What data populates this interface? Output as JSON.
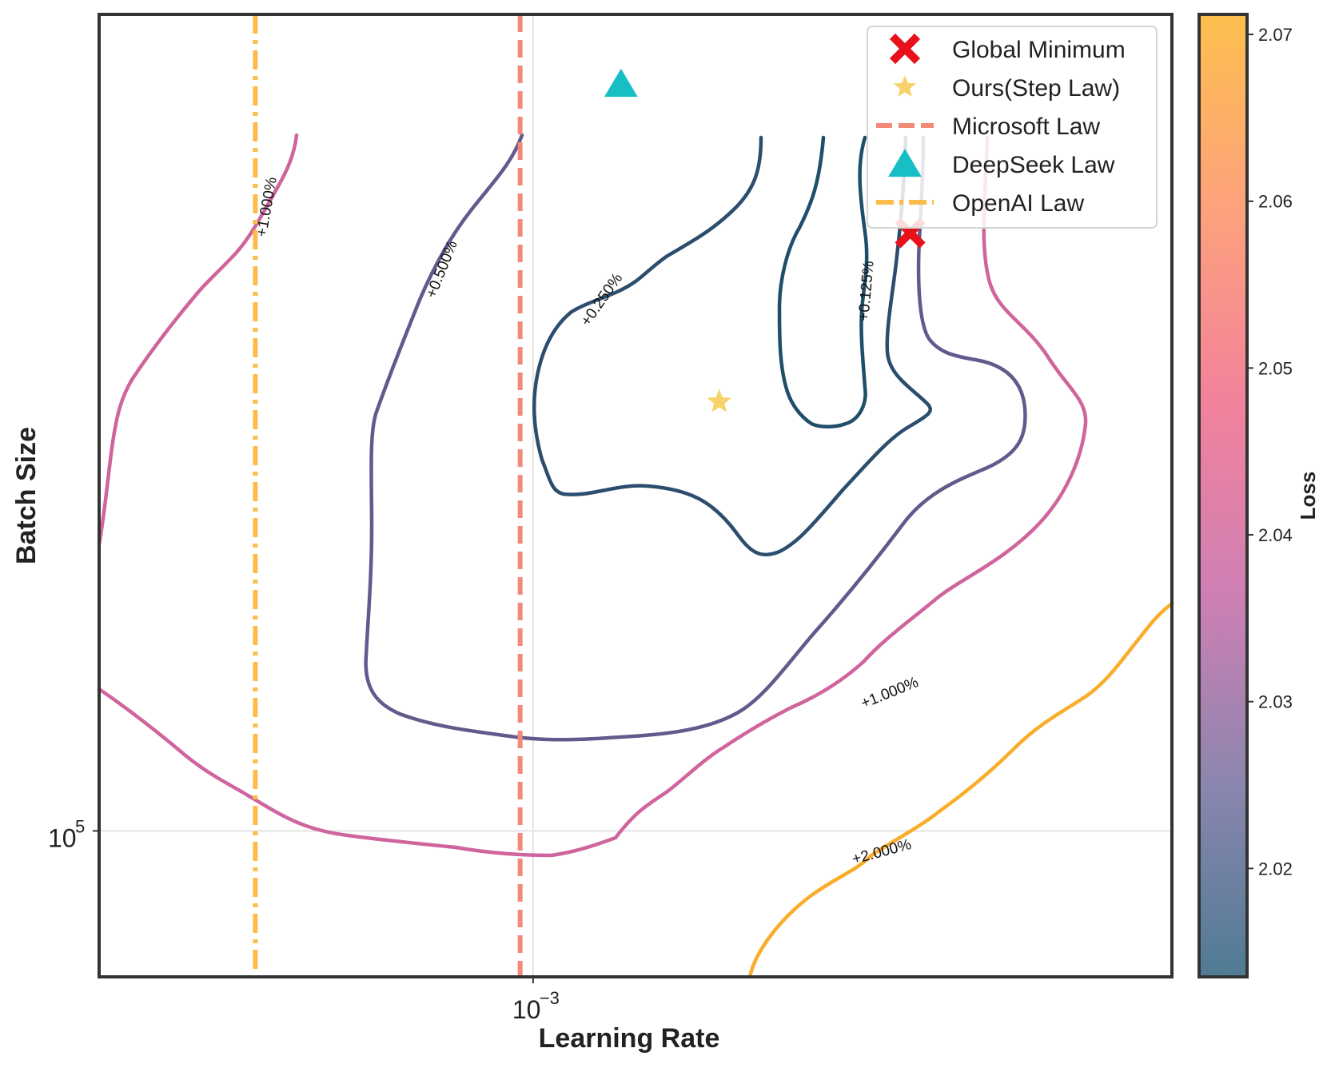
{
  "chart_data": {
    "type": "contour",
    "xlabel": "Learning Rate",
    "ylabel": "Batch Size",
    "x_scale": "log",
    "y_scale": "log",
    "xlim": [
      0.00036,
      0.0045
    ],
    "ylim": [
      75000,
      500000
    ],
    "x_tick_labels": [
      {
        "value": 0.001,
        "base": "10",
        "exp": "−3"
      }
    ],
    "y_tick_labels": [
      {
        "value": 100000,
        "base": "10",
        "exp": "5"
      }
    ],
    "grid": true,
    "legend_position": "top-right",
    "legend": [
      {
        "label": "Global Minimum",
        "marker": "x",
        "color": "#e8101a"
      },
      {
        "label": "Ours(Step Law)",
        "marker": "star",
        "color": "#f7d36b"
      },
      {
        "label": "Microsoft Law",
        "marker": "dashed-line",
        "color": "#f28a78"
      },
      {
        "label": "DeepSeek Law",
        "marker": "triangle",
        "color": "#17bfc4"
      },
      {
        "label": "OpenAI Law",
        "marker": "dashdot-line",
        "color": "#fbbc4a"
      }
    ],
    "points": {
      "global_minimum": {
        "lr": 0.00243,
        "bs": 325000
      },
      "step_law": {
        "lr": 0.00155,
        "bs": 233000
      },
      "deepseek_law": {
        "lr": 0.00123,
        "bs": 436000
      }
    },
    "reference_lines": {
      "microsoft_law_lr": 0.00097,
      "openai_law_lr": 0.00052
    },
    "contour_levels": [
      {
        "label": "+0.125%",
        "color": "#1f4e6b"
      },
      {
        "label": "+0.250%",
        "color": "#2b4d6e"
      },
      {
        "label": "+0.500%",
        "color": "#625a8c"
      },
      {
        "label": "+1.000%",
        "color": "#d0649c"
      },
      {
        "label": "+2.000%",
        "color": "#f9ad2a"
      }
    ],
    "colorbar": {
      "label": "Loss",
      "min": 2.0135,
      "max": 2.0712,
      "ticks": [
        "2.02",
        "2.03",
        "2.04",
        "2.05",
        "2.06",
        "2.07"
      ],
      "colors": [
        "#4f7b92",
        "#8b86ae",
        "#cf7fb4",
        "#f2829b",
        "#fda27c",
        "#fdbf4e"
      ]
    }
  }
}
